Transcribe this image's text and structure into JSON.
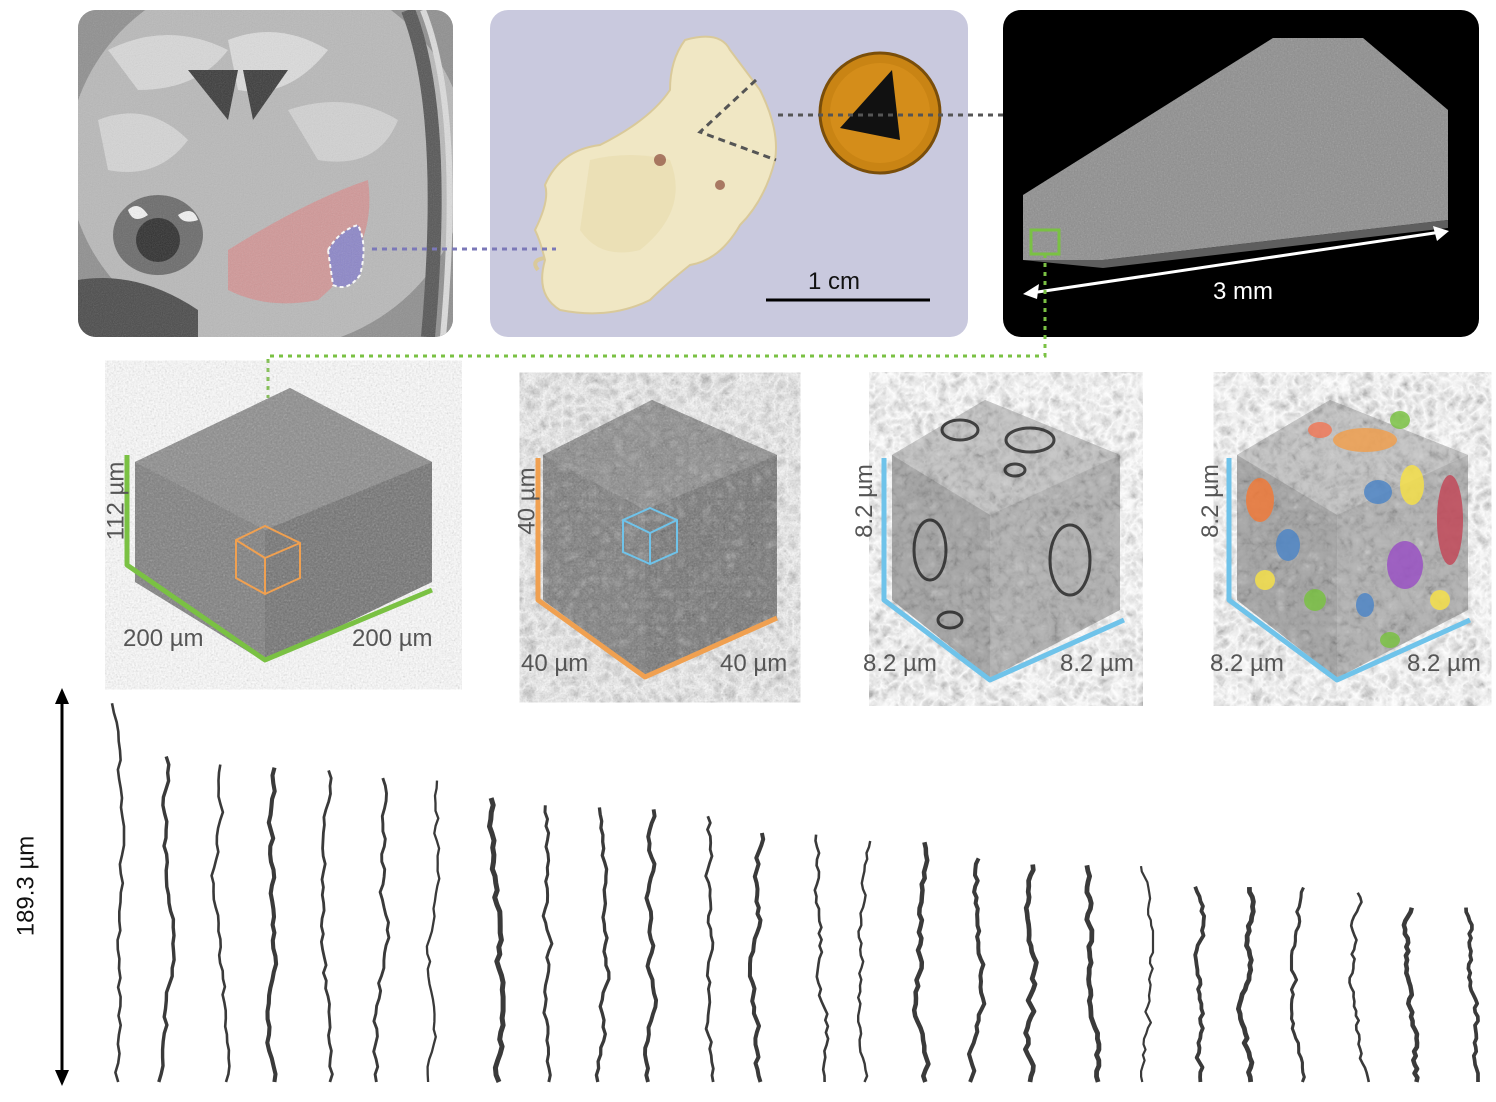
{
  "panels": {
    "mri": {
      "name": "mri-coronal-slice"
    },
    "tissue": {
      "scale_bar_label": "1 cm"
    },
    "slab": {
      "scale_label": "3 mm"
    }
  },
  "cubes": [
    {
      "height_label": "112 µm",
      "left_label": "200 µm",
      "right_label": "200 µm",
      "edge_color": "#7ac143",
      "inner_box_color": "#f0a050"
    },
    {
      "height_label": "40 µm",
      "left_label": "40 µm",
      "right_label": "40 µm",
      "edge_color": "#f0a050",
      "inner_box_color": "#6fc3ea"
    },
    {
      "height_label": "8.2 µm",
      "left_label": "8.2 µm",
      "right_label": "8.2 µm",
      "edge_color": "#6fc3ea"
    },
    {
      "height_label": "8.2 µm",
      "left_label": "8.2 µm",
      "right_label": "8.2 µm",
      "edge_color": "#6fc3ea"
    }
  ],
  "vessels": {
    "height_label": "189.3 µm",
    "count": 26
  },
  "colors": {
    "region_highlight": "#d98c8c",
    "dissected_region": "#8c86c8",
    "tissue_bg": "#c9c9de",
    "green_link": "#7ac143",
    "purple_link": "#7b78b8"
  }
}
